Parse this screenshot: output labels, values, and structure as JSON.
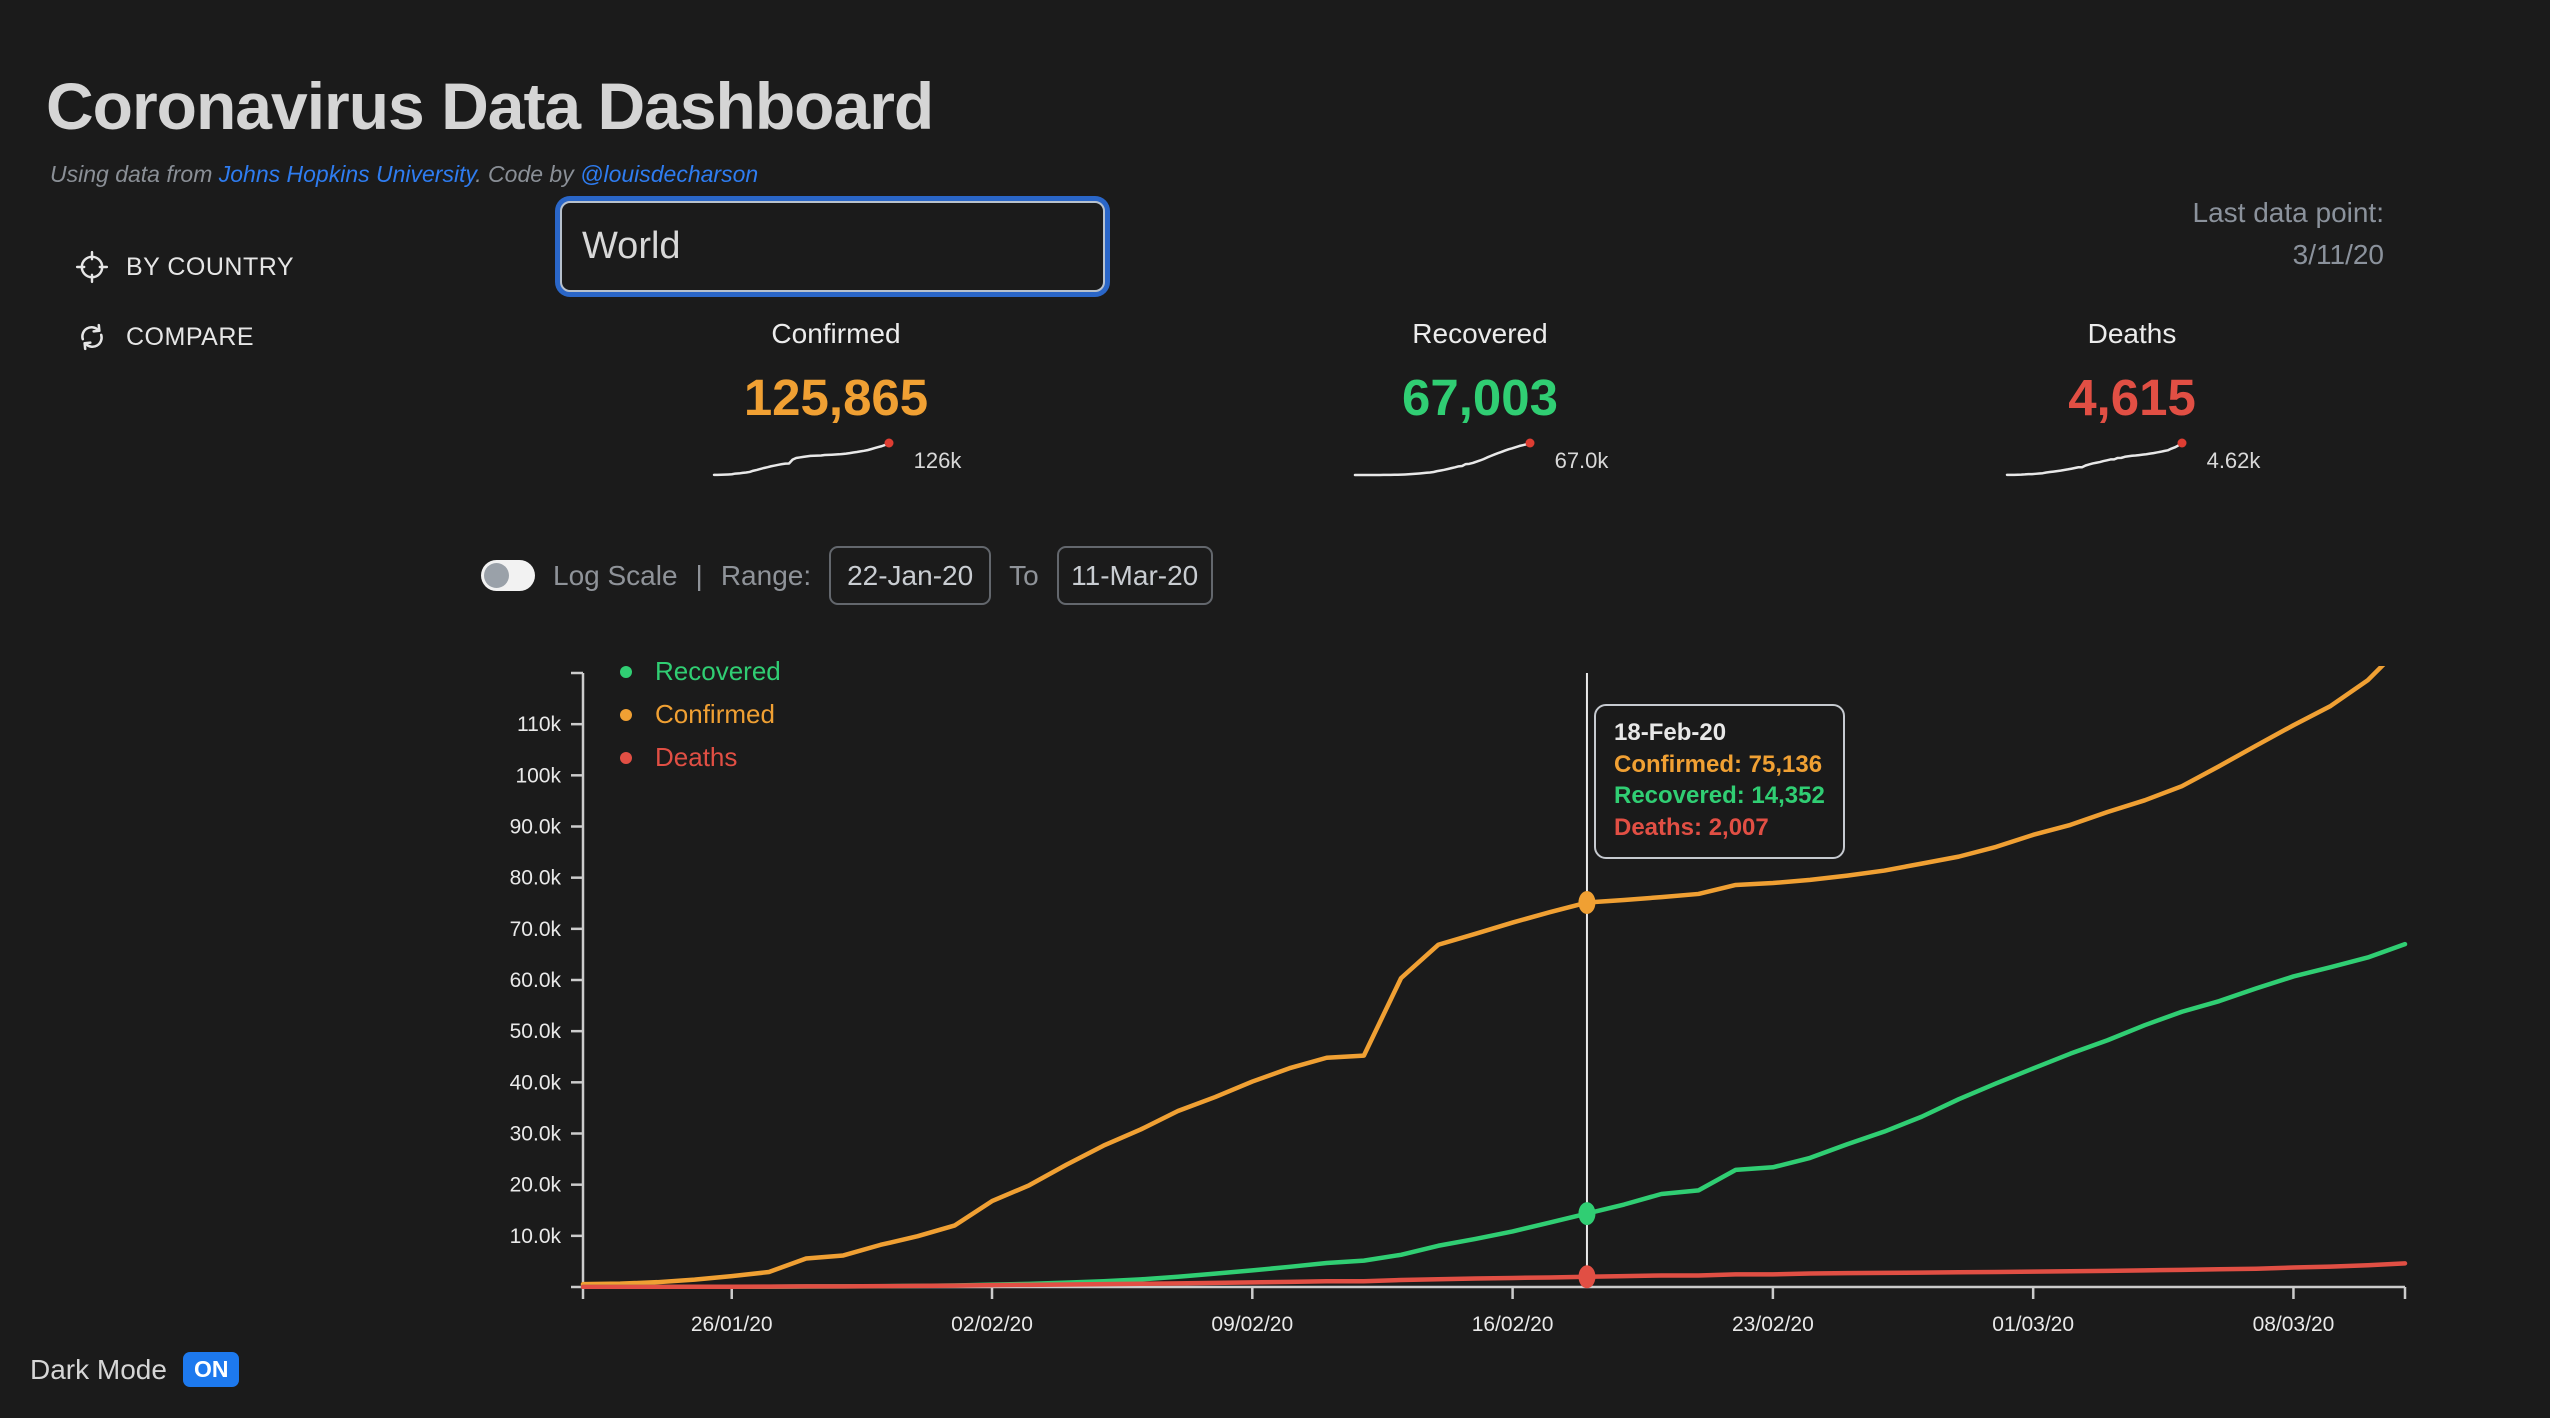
{
  "header": {
    "title": "Coronavirus Data Dashboard",
    "subtitle_prefix": "Using data from ",
    "link_jhu": "Johns Hopkins University",
    "subtitle_mid": ". Code by ",
    "link_author": "@louisdecharson"
  },
  "sidebar": {
    "items": [
      {
        "label": "BY COUNTRY",
        "icon": "target-icon"
      },
      {
        "label": "COMPARE",
        "icon": "compare-arrows-icon"
      }
    ]
  },
  "search": {
    "value": "World"
  },
  "last_data_point": {
    "label": "Last data point:",
    "value": "3/11/20"
  },
  "stats": [
    {
      "label": "Confirmed",
      "value": "125,865",
      "spark_label": "126k",
      "color": "#f0a033",
      "series": "Confirmed"
    },
    {
      "label": "Recovered",
      "value": "67,003",
      "spark_label": "67.0k",
      "color": "#30ce73",
      "series": "Recovered"
    },
    {
      "label": "Deaths",
      "value": "4,615",
      "spark_label": "4.62k",
      "color": "#e14f44",
      "series": "Deaths"
    }
  ],
  "controls": {
    "log_scale_label": "Log Scale",
    "separator": "|",
    "range_label": "Range:",
    "from_value": "22-Jan-20",
    "to_label": "To",
    "to_value": "11-Mar-20",
    "log_scale_on": false
  },
  "dark_mode": {
    "label": "Dark Mode",
    "badge": "ON"
  },
  "colors": {
    "background": "#1b1b1b",
    "confirmed": "#f0a033",
    "recovered": "#30ce73",
    "deaths": "#e14f44",
    "link_blue": "#2e7cf0",
    "focus_ring_blue": "#2a66c8",
    "badge_blue": "#1d79ee",
    "axis": "#cccccc",
    "axis_text": "#e9e9e9",
    "spark_line": "#e8e8e8",
    "spark_dot": "#de3d32",
    "hover_line": "#e9e9e9"
  },
  "chart_data": {
    "type": "line",
    "title": "",
    "xlabel": "",
    "ylabel": "",
    "grid": false,
    "legend_position": "top-left",
    "ylim": [
      0,
      120000
    ],
    "x": [
      "22/01/20",
      "23/01/20",
      "24/01/20",
      "25/01/20",
      "26/01/20",
      "27/01/20",
      "28/01/20",
      "29/01/20",
      "30/01/20",
      "31/01/20",
      "01/02/20",
      "02/02/20",
      "03/02/20",
      "04/02/20",
      "05/02/20",
      "06/02/20",
      "07/02/20",
      "08/02/20",
      "09/02/20",
      "10/02/20",
      "11/02/20",
      "12/02/20",
      "13/02/20",
      "14/02/20",
      "15/02/20",
      "16/02/20",
      "17/02/20",
      "18/02/20",
      "19/02/20",
      "20/02/20",
      "21/02/20",
      "22/02/20",
      "23/02/20",
      "24/02/20",
      "25/02/20",
      "26/02/20",
      "27/02/20",
      "28/02/20",
      "29/02/20",
      "01/03/20",
      "02/03/20",
      "03/03/20",
      "04/03/20",
      "05/03/20",
      "06/03/20",
      "07/03/20",
      "08/03/20",
      "09/03/20",
      "10/03/20",
      "11/03/20"
    ],
    "x_tick_indices": [
      4,
      11,
      18,
      25,
      32,
      39,
      46
    ],
    "x_tick_labels": [
      "26/01/20",
      "02/02/20",
      "09/02/20",
      "16/02/20",
      "23/02/20",
      "01/03/20",
      "08/03/20"
    ],
    "y_ticks": {
      "values": [
        0,
        10000,
        20000,
        30000,
        40000,
        50000,
        60000,
        70000,
        80000,
        90000,
        100000,
        110000,
        120000
      ],
      "labels": [
        "",
        "10.0k",
        "20.0k",
        "30.0k",
        "40.0k",
        "50.0k",
        "60.0k",
        "70.0k",
        "80.0k",
        "90.0k",
        "100k",
        "110k",
        ""
      ]
    },
    "series": [
      {
        "name": "Confirmed",
        "color": "#f0a033",
        "values": [
          555,
          654,
          941,
          1434,
          2118,
          2927,
          5578,
          6166,
          8234,
          9927,
          12038,
          16787,
          19881,
          23892,
          27635,
          30794,
          34391,
          37120,
          40150,
          42762,
          44802,
          45221,
          60368,
          66885,
          69030,
          71224,
          73258,
          75136,
          75639,
          76197,
          76819,
          78572,
          78958,
          79561,
          80406,
          81388,
          82746,
          84112,
          86011,
          88369,
          90306,
          92840,
          95120,
          97882,
          101784,
          105821,
          109795,
          113561,
          118592,
          125865
        ]
      },
      {
        "name": "Recovered",
        "color": "#30ce73",
        "values": [
          28,
          30,
          36,
          39,
          52,
          61,
          107,
          126,
          143,
          222,
          284,
          472,
          623,
          852,
          1124,
          1487,
          2011,
          2616,
          3244,
          3946,
          4683,
          5150,
          6295,
          8058,
          9395,
          10865,
          12583,
          14352,
          16121,
          18177,
          18890,
          22886,
          23394,
          25227,
          27905,
          30384,
          33277,
          36711,
          39782,
          42716,
          45602,
          48228,
          51170,
          53796,
          55865,
          58358,
          60694,
          62494,
          64404,
          67003
        ]
      },
      {
        "name": "Deaths",
        "color": "#e14f44",
        "values": [
          17,
          18,
          26,
          42,
          56,
          82,
          131,
          133,
          171,
          213,
          259,
          362,
          426,
          492,
          564,
          634,
          719,
          806,
          906,
          1013,
          1113,
          1118,
          1371,
          1523,
          1666,
          1770,
          1868,
          2007,
          2122,
          2247,
          2251,
          2458,
          2469,
          2629,
          2708,
          2770,
          2814,
          2872,
          2941,
          2996,
          3085,
          3160,
          3254,
          3348,
          3460,
          3558,
          3802,
          3988,
          4262,
          4615
        ]
      }
    ],
    "legend": [
      {
        "label": "Recovered",
        "color": "#30ce73"
      },
      {
        "label": "Confirmed",
        "color": "#f0a033"
      },
      {
        "label": "Deaths",
        "color": "#e14f44"
      }
    ],
    "hover": {
      "index": 27,
      "date_label": "18-Feb-20",
      "rows": [
        {
          "name": "Confirmed",
          "value": "75,136",
          "color": "#f0a033"
        },
        {
          "name": "Recovered",
          "value": "14,352",
          "color": "#30ce73"
        },
        {
          "name": "Deaths",
          "value": "2,007",
          "color": "#e14f44"
        }
      ]
    }
  }
}
